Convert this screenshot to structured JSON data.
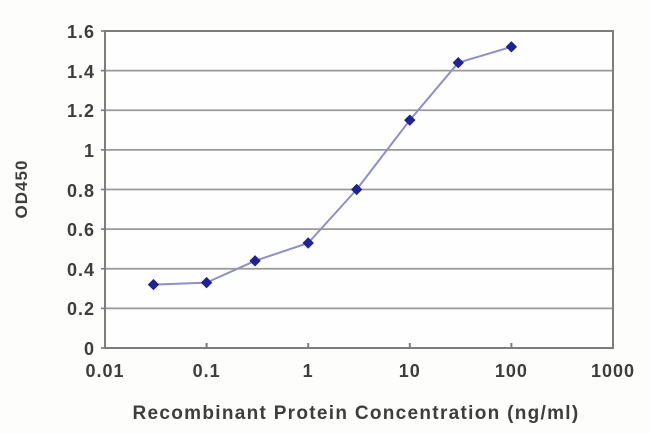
{
  "chart_data": {
    "type": "line",
    "x": [
      0.03,
      0.1,
      0.3,
      1,
      3,
      10,
      30,
      100
    ],
    "y": [
      0.32,
      0.33,
      0.44,
      0.53,
      0.8,
      1.15,
      1.44,
      1.52
    ],
    "title": "",
    "xlabel": "Recombinant Protein Concentration (ng/ml)",
    "ylabel": "OD450",
    "x_scale": "log",
    "xlim": [
      0.01,
      1000
    ],
    "ylim": [
      0,
      1.6
    ],
    "x_ticks": [
      "0.01",
      "0.1",
      "1",
      "10",
      "100",
      "1000"
    ],
    "x_tick_values": [
      0.01,
      0.1,
      1,
      10,
      100,
      1000
    ],
    "y_ticks": [
      "0",
      "0.2",
      "0.4",
      "0.6",
      "0.8",
      "1",
      "1.2",
      "1.4",
      "1.6"
    ],
    "y_tick_values": [
      0,
      0.2,
      0.4,
      0.6,
      0.8,
      1,
      1.2,
      1.4,
      1.6
    ],
    "grid": "horizontal",
    "legend": "none",
    "marker": "diamond",
    "colors": {
      "line": "#8f8fc7",
      "marker": "#23238e",
      "gridline": "#999999",
      "frame": "#7d7d7d",
      "text": "#3d3d3d",
      "plot_background": "#fefefe"
    }
  }
}
